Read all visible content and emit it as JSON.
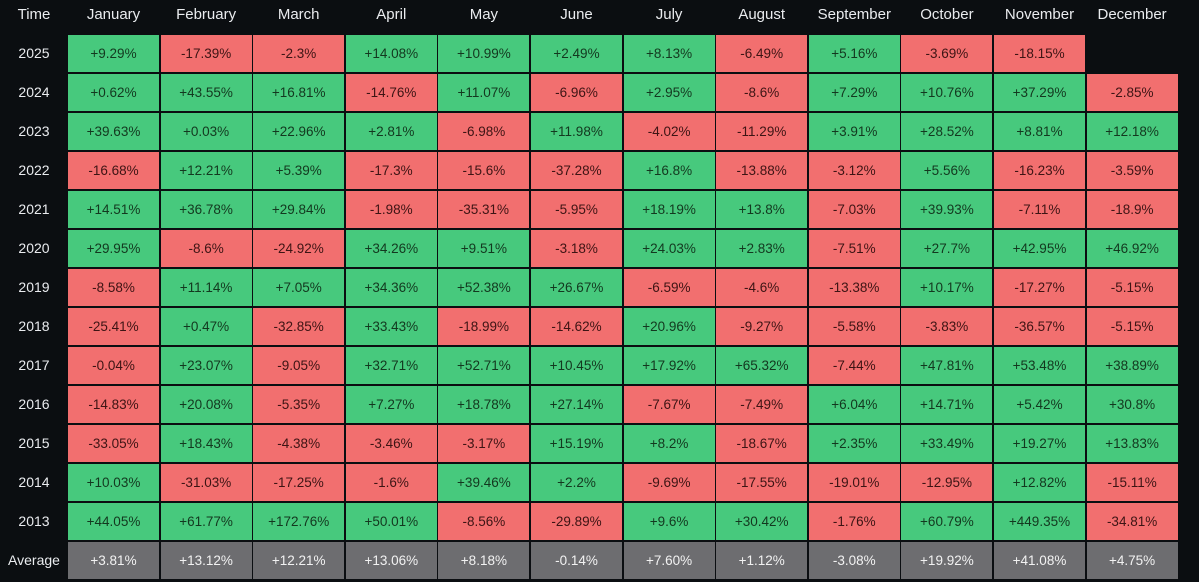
{
  "chart_data": {
    "type": "heatmap",
    "title": "",
    "corner_label": "Time",
    "columns": [
      "January",
      "February",
      "March",
      "April",
      "May",
      "June",
      "July",
      "August",
      "September",
      "October",
      "November",
      "December"
    ],
    "rows": [
      {
        "year": "2025",
        "values": [
          "+9.29%",
          "-17.39%",
          "-2.3%",
          "+14.08%",
          "+10.99%",
          "+2.49%",
          "+8.13%",
          "-6.49%",
          "+5.16%",
          "-3.69%",
          "-18.15%",
          null
        ]
      },
      {
        "year": "2024",
        "values": [
          "+0.62%",
          "+43.55%",
          "+16.81%",
          "-14.76%",
          "+11.07%",
          "-6.96%",
          "+2.95%",
          "-8.6%",
          "+7.29%",
          "+10.76%",
          "+37.29%",
          "-2.85%"
        ]
      },
      {
        "year": "2023",
        "values": [
          "+39.63%",
          "+0.03%",
          "+22.96%",
          "+2.81%",
          "-6.98%",
          "+11.98%",
          "-4.02%",
          "-11.29%",
          "+3.91%",
          "+28.52%",
          "+8.81%",
          "+12.18%"
        ]
      },
      {
        "year": "2022",
        "values": [
          "-16.68%",
          "+12.21%",
          "+5.39%",
          "-17.3%",
          "-15.6%",
          "-37.28%",
          "+16.8%",
          "-13.88%",
          "-3.12%",
          "+5.56%",
          "-16.23%",
          "-3.59%"
        ]
      },
      {
        "year": "2021",
        "values": [
          "+14.51%",
          "+36.78%",
          "+29.84%",
          "-1.98%",
          "-35.31%",
          "-5.95%",
          "+18.19%",
          "+13.8%",
          "-7.03%",
          "+39.93%",
          "-7.11%",
          "-18.9%"
        ]
      },
      {
        "year": "2020",
        "values": [
          "+29.95%",
          "-8.6%",
          "-24.92%",
          "+34.26%",
          "+9.51%",
          "-3.18%",
          "+24.03%",
          "+2.83%",
          "-7.51%",
          "+27.7%",
          "+42.95%",
          "+46.92%"
        ]
      },
      {
        "year": "2019",
        "values": [
          "-8.58%",
          "+11.14%",
          "+7.05%",
          "+34.36%",
          "+52.38%",
          "+26.67%",
          "-6.59%",
          "-4.6%",
          "-13.38%",
          "+10.17%",
          "-17.27%",
          "-5.15%"
        ]
      },
      {
        "year": "2018",
        "values": [
          "-25.41%",
          "+0.47%",
          "-32.85%",
          "+33.43%",
          "-18.99%",
          "-14.62%",
          "+20.96%",
          "-9.27%",
          "-5.58%",
          "-3.83%",
          "-36.57%",
          "-5.15%"
        ]
      },
      {
        "year": "2017",
        "values": [
          "-0.04%",
          "+23.07%",
          "-9.05%",
          "+32.71%",
          "+52.71%",
          "+10.45%",
          "+17.92%",
          "+65.32%",
          "-7.44%",
          "+47.81%",
          "+53.48%",
          "+38.89%"
        ]
      },
      {
        "year": "2016",
        "values": [
          "-14.83%",
          "+20.08%",
          "-5.35%",
          "+7.27%",
          "+18.78%",
          "+27.14%",
          "-7.67%",
          "-7.49%",
          "+6.04%",
          "+14.71%",
          "+5.42%",
          "+30.8%"
        ]
      },
      {
        "year": "2015",
        "values": [
          "-33.05%",
          "+18.43%",
          "-4.38%",
          "-3.46%",
          "-3.17%",
          "+15.19%",
          "+8.2%",
          "-18.67%",
          "+2.35%",
          "+33.49%",
          "+19.27%",
          "+13.83%"
        ]
      },
      {
        "year": "2014",
        "values": [
          "+10.03%",
          "-31.03%",
          "-17.25%",
          "-1.6%",
          "+39.46%",
          "+2.2%",
          "-9.69%",
          "-17.55%",
          "-19.01%",
          "-12.95%",
          "+12.82%",
          "-15.11%"
        ]
      },
      {
        "year": "2013",
        "values": [
          "+44.05%",
          "+61.77%",
          "+172.76%",
          "+50.01%",
          "-8.56%",
          "-29.89%",
          "+9.6%",
          "+30.42%",
          "-1.76%",
          "+60.79%",
          "+449.35%",
          "-34.81%"
        ]
      }
    ],
    "average": {
      "label": "Average",
      "values": [
        "+3.81%",
        "+13.12%",
        "+12.21%",
        "+13.06%",
        "+8.18%",
        "-0.14%",
        "+7.60%",
        "+1.12%",
        "-3.08%",
        "+19.92%",
        "+41.08%",
        "+4.75%"
      ]
    },
    "colors": {
      "positive": "#47c97d",
      "negative": "#f26f6f",
      "average": "#6d6d70",
      "background": "#0b0e11",
      "header_text": "#eaecef"
    }
  }
}
